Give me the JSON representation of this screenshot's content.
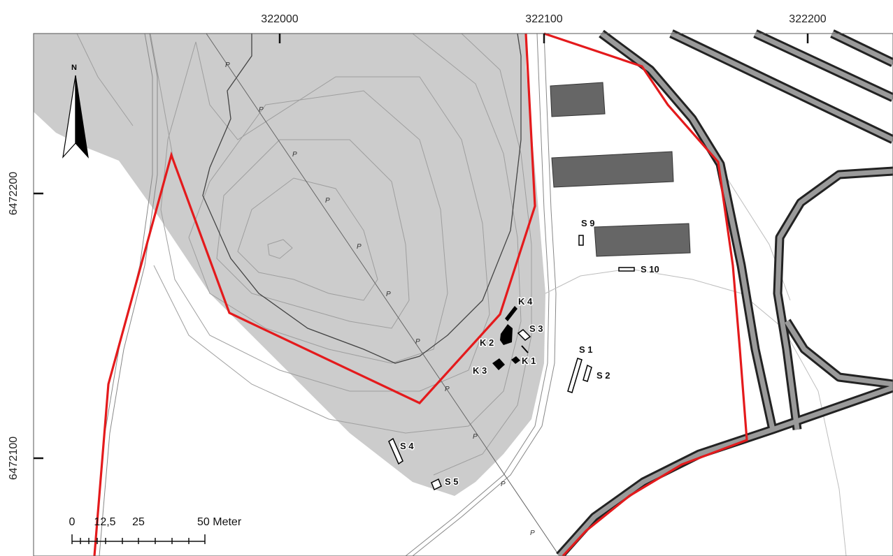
{
  "map": {
    "grid": {
      "x_labels": [
        "322000",
        "322100",
        "322200"
      ],
      "y_labels": [
        "6472200",
        "6472100"
      ]
    },
    "north_arrow": {
      "label": "N"
    },
    "scale_bar": {
      "labels": [
        "0",
        "12,5",
        "25",
        "50 Meter"
      ]
    },
    "features": {
      "K1": "K 1",
      "K2": "K 2",
      "K3": "K 3",
      "K4": "K 4",
      "S1": "S 1",
      "S2": "S 2",
      "S3": "S 3",
      "S4": "S 4",
      "S5": "S 5",
      "S9": "S 9",
      "S10": "S 10"
    },
    "pipeline_marker": "P",
    "colors": {
      "boundary": "#e41a1c",
      "hill_fill": "#cccccc",
      "building": "#666666",
      "road_outline": "#222222",
      "road_fill": "#9a9a9a"
    }
  }
}
